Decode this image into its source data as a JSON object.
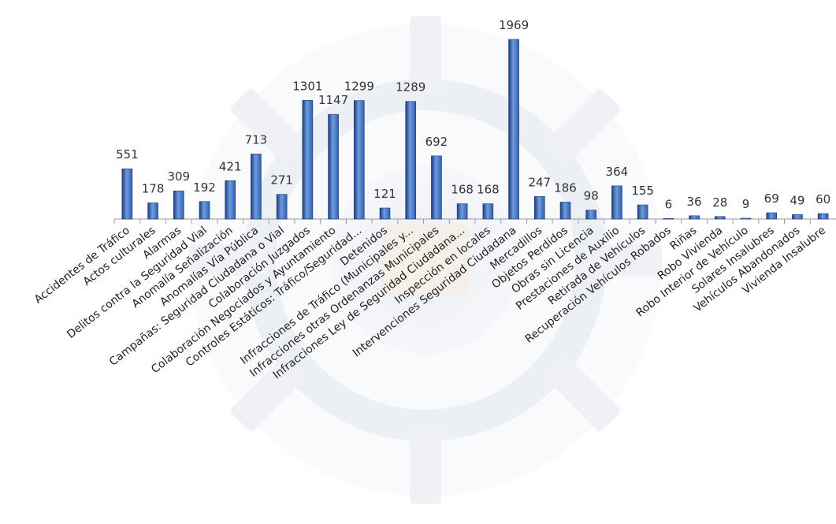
{
  "chart_data": {
    "type": "bar",
    "title": "",
    "xlabel": "",
    "ylabel": "",
    "ylim": [
      0,
      2000
    ],
    "grid": false,
    "legend": "none",
    "bar_color": "#2f5fae",
    "bar_color_light": "#6f9be0",
    "bar_color_dark": "#1c3d78",
    "categories": [
      "Accidentes de Tráfico",
      "Actos culturales",
      "Alarmas",
      "Delitos contra la Seguridad Vial",
      "Anomalía Señalización",
      "Anomalías Vía Pública",
      "Campañas: Seguridad Ciudadana o Vial",
      "Colaboración Juzgados",
      "Colaboración Negociados y Ayuntamiento",
      "Controles Estáticos: Tráfico/Seguridad...",
      "Detenidos",
      "Infracciones de Tráfico (Municipales y...",
      "Infracciones otras Ordenanzas Municipales",
      "Infracciones Ley de Seguridad Ciudadana...",
      "Inspección en locales",
      "Intervenciones Seguridad Ciudadana",
      "Mercadillos",
      "Objetos Perdidos",
      "Obras sin Licencia",
      "Prestaciones de Auxilio",
      "Retirada de Vehículos",
      "Recuperación Vehículos Robados",
      "Riñas",
      "Robo Vivienda",
      "Robo Interior de Vehículo",
      "Solares Insalubres",
      "Vehículos Abandonados",
      "Vivienda Insalubre"
    ],
    "values": [
      551,
      178,
      309,
      192,
      421,
      713,
      271,
      1301,
      1147,
      1299,
      121,
      1289,
      692,
      168,
      168,
      1969,
      247,
      186,
      98,
      364,
      155,
      6,
      36,
      28,
      9,
      69,
      49,
      60
    ],
    "value_labels": [
      "551",
      "178",
      "309",
      "192",
      "421",
      "713",
      "271",
      "1301",
      "1147",
      "1299",
      "121",
      "1289",
      "692",
      "168",
      "168",
      "1969",
      "247",
      "186",
      "98",
      "364",
      "155",
      "6",
      "36",
      "28",
      "9",
      "69",
      "49",
      "60"
    ]
  }
}
